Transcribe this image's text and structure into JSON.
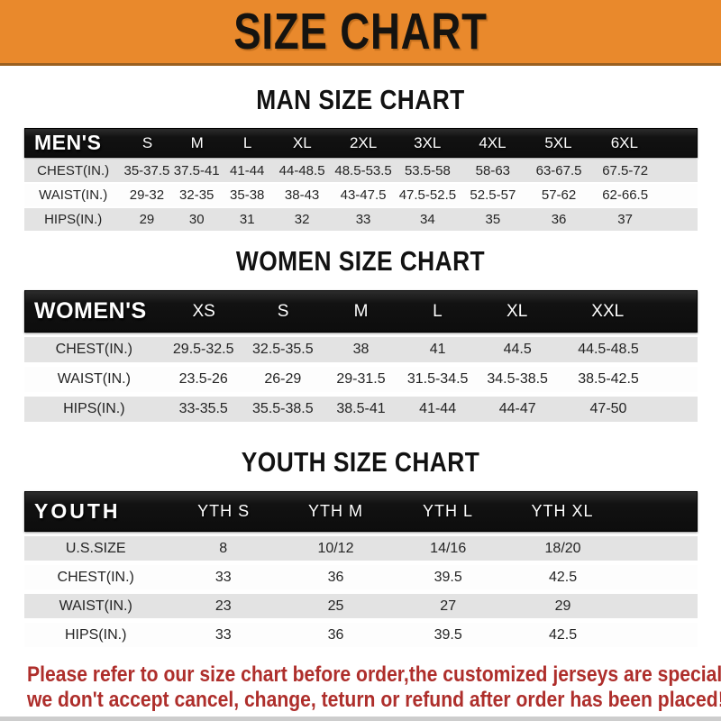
{
  "banner": {
    "title": "SIZE CHART",
    "bg_color": "#E9892C",
    "text_color": "#151310"
  },
  "colors": {
    "table_header_bg": "#141414",
    "table_header_text": "#FFFFFF",
    "row_gray": "#E3E3E3",
    "row_white": "#FDFDFD",
    "footer_text": "#AE2E2B"
  },
  "sections": [
    {
      "id": "men",
      "heading": "MAN SIZE CHART",
      "label": "MEN'S",
      "columns": [
        "S",
        "M",
        "L",
        "XL",
        "2XL",
        "3XL",
        "4XL",
        "5XL",
        "6XL"
      ],
      "rows": [
        {
          "label": "CHEST(IN.)",
          "values": [
            "35-37.5",
            "37.5-41",
            "41-44",
            "44-48.5",
            "48.5-53.5",
            "53.5-58",
            "58-63",
            "63-67.5",
            "67.5-72"
          ]
        },
        {
          "label": "WAIST(IN.)",
          "values": [
            "29-32",
            "32-35",
            "35-38",
            "38-43",
            "43-47.5",
            "47.5-52.5",
            "52.5-57",
            "57-62",
            "62-66.5"
          ]
        },
        {
          "label": "HIPS(IN.)",
          "values": [
            "29",
            "30",
            "31",
            "32",
            "33",
            "34",
            "35",
            "36",
            "37"
          ]
        }
      ]
    },
    {
      "id": "women",
      "heading": "WOMEN SIZE CHART",
      "label": "WOMEN'S",
      "columns": [
        "XS",
        "S",
        "M",
        "L",
        "XL",
        "XXL"
      ],
      "rows": [
        {
          "label": "CHEST(IN.)",
          "values": [
            "29.5-32.5",
            "32.5-35.5",
            "38",
            "41",
            "44.5",
            "44.5-48.5"
          ]
        },
        {
          "label": "WAIST(IN.)",
          "values": [
            "23.5-26",
            "26-29",
            "29-31.5",
            "31.5-34.5",
            "34.5-38.5",
            "38.5-42.5"
          ]
        },
        {
          "label": "HIPS(IN.)",
          "values": [
            "33-35.5",
            "35.5-38.5",
            "38.5-41",
            "41-44",
            "44-47",
            "47-50"
          ]
        }
      ]
    },
    {
      "id": "youth",
      "heading": "YOUTH SIZE CHART",
      "label": "YOUTH",
      "columns": [
        "YTH S",
        "YTH M",
        "YTH L",
        "YTH XL"
      ],
      "rows": [
        {
          "label": "U.S.SIZE",
          "values": [
            "8",
            "10/12",
            "14/16",
            "18/20"
          ]
        },
        {
          "label": "CHEST(IN.)",
          "values": [
            "33",
            "36",
            "39.5",
            "42.5"
          ]
        },
        {
          "label": "WAIST(IN.)",
          "values": [
            "23",
            "25",
            "27",
            "29"
          ]
        },
        {
          "label": "HIPS(IN.)",
          "values": [
            "33",
            "36",
            "39.5",
            "42.5"
          ]
        }
      ]
    }
  ],
  "footer": {
    "line1": "Please refer to our size chart before order,the customized jerseys are special products,",
    "line2": "we don't accept cancel, change, teturn or refund after order has been placed!"
  }
}
